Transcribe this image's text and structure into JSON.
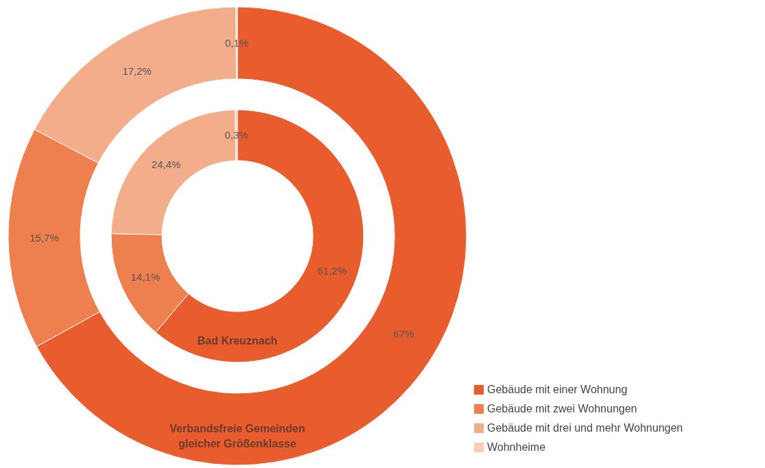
{
  "chart_data": {
    "type": "donut",
    "categories": [
      "Gebäude mit einer Wohnung",
      "Gebäude mit zwei Wohnungen",
      "Gebäude mit drei und mehr Wohnungen",
      "Wohnheime"
    ],
    "colors": [
      "#e85c2e",
      "#ee7f4f",
      "#f4ad8a",
      "#f8cdb4"
    ],
    "legend": "bottom right",
    "series": [
      {
        "name": "Verbandsfreie Gemeinden gleicher Größenklasse",
        "values": [
          67,
          15.7,
          17.2,
          0.1
        ],
        "value_labels": [
          "67%",
          "15,7%",
          "17,2%",
          "0,1%"
        ]
      },
      {
        "name": "Bad Kreuznach",
        "values": [
          61.2,
          14.1,
          24.4,
          0.3
        ],
        "value_labels": [
          "61,2%",
          "14,1%",
          "24,4%",
          "0,3%"
        ]
      }
    ]
  }
}
